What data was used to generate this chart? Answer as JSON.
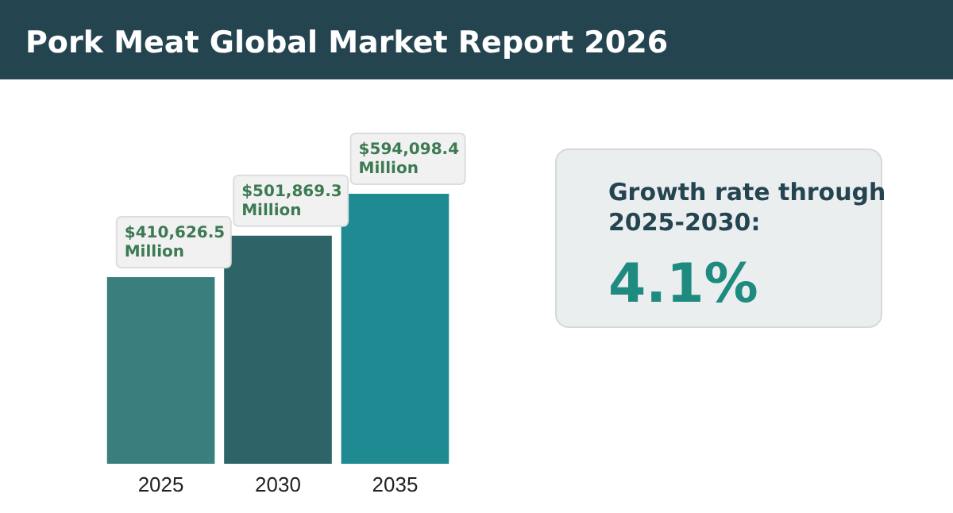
{
  "chart_data": {
    "type": "bar",
    "title": "Pork Meat Global Market Report 2026",
    "categories": [
      "2025",
      "2030",
      "2035"
    ],
    "values": [
      410626.5,
      501869.3,
      594098.4
    ],
    "colors": [
      "#3a7f7d",
      "#2e6468",
      "#1f8a91"
    ],
    "value_labels": [
      "$410,626.5 Million",
      "$501,869.3 Million",
      "$594,098.4 Million"
    ],
    "annotations": [
      "Growth rate through 2025-2030:",
      "4.1%"
    ]
  }
}
